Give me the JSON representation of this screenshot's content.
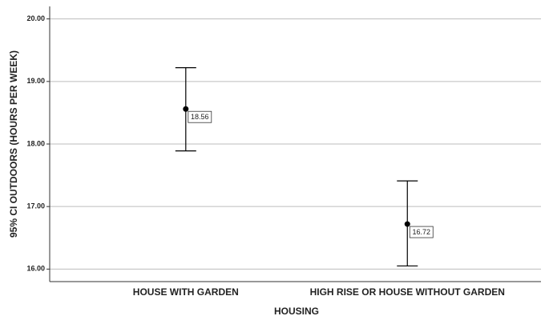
{
  "chart_data": {
    "type": "errorbar",
    "x_label": "HOUSING",
    "y_label": "95% CI OUTDOORS (HOURS PER WEEK)",
    "categories": [
      "HOUSE WITH GARDEN",
      "HIGH RISE OR HOUSE WITHOUT GARDEN"
    ],
    "values": [
      18.56,
      16.72
    ],
    "lower": [
      17.89,
      16.05
    ],
    "upper": [
      19.22,
      17.41
    ],
    "color": "#000000",
    "ylim": [
      15.8,
      20.2
    ],
    "yticks": [
      {
        "value": 16,
        "label": "16.00"
      },
      {
        "value": 17,
        "label": "17.00"
      },
      {
        "value": 18,
        "label": "18.00"
      },
      {
        "value": 19,
        "label": "19.00"
      },
      {
        "value": 20,
        "label": "20.00"
      }
    ],
    "grid": true
  }
}
